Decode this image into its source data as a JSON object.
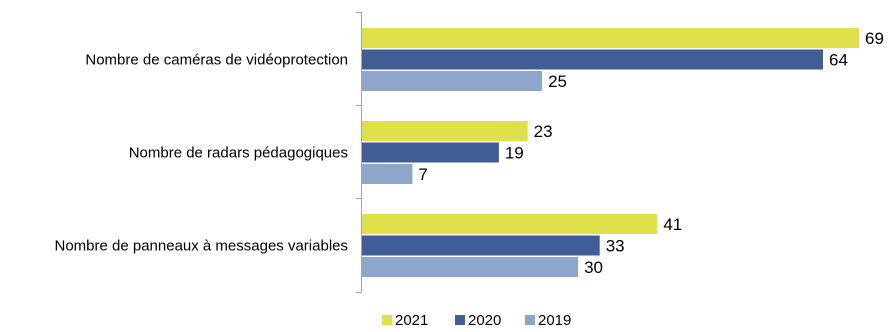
{
  "chart_data": {
    "type": "bar",
    "orientation": "horizontal",
    "categories": [
      "Nombre de caméras de vidéoprotection",
      "Nombre de radars pédagogiques",
      "Nombre de panneaux à messages variables"
    ],
    "series": [
      {
        "name": "2021",
        "values": [
          69,
          23,
          41
        ],
        "color": "#dfe04a"
      },
      {
        "name": "2020",
        "values": [
          64,
          19,
          33
        ],
        "color": "#3f5e95"
      },
      {
        "name": "2019",
        "values": [
          25,
          7,
          30
        ],
        "color": "#8ea5cc"
      }
    ],
    "title": "",
    "xlabel": "",
    "ylabel": "",
    "xlim": [
      0,
      69
    ],
    "grid": false,
    "legend": "bottom"
  }
}
